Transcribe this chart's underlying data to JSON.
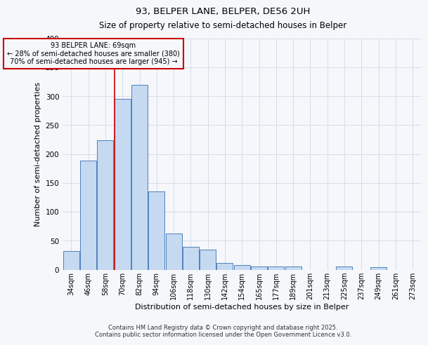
{
  "title": "93, BELPER LANE, BELPER, DE56 2UH",
  "subtitle": "Size of property relative to semi-detached houses in Belper",
  "xlabel": "Distribution of semi-detached houses by size in Belper",
  "ylabel": "Number of semi-detached properties",
  "bar_labels": [
    "34sqm",
    "46sqm",
    "58sqm",
    "70sqm",
    "82sqm",
    "94sqm",
    "106sqm",
    "118sqm",
    "130sqm",
    "142sqm",
    "154sqm",
    "165sqm",
    "177sqm",
    "189sqm",
    "201sqm",
    "213sqm",
    "225sqm",
    "237sqm",
    "249sqm",
    "261sqm",
    "273sqm"
  ],
  "bar_values": [
    32,
    188,
    224,
    295,
    320,
    135,
    62,
    40,
    34,
    11,
    8,
    6,
    6,
    6,
    0,
    0,
    6,
    0,
    4,
    0,
    0
  ],
  "bar_color": "#c5d9f1",
  "bar_edge_color": "#4f81bd",
  "vline_x_idx": 3,
  "vline_color": "#cc0000",
  "annotation_line1": "93 BELPER LANE: 69sqm",
  "annotation_line2": "← 28% of semi-detached houses are smaller (380)",
  "annotation_line3": "70% of semi-detached houses are larger (945) →",
  "annotation_box_color": "#cc0000",
  "ylim": [
    0,
    400
  ],
  "yticks": [
    0,
    50,
    100,
    150,
    200,
    250,
    300,
    350,
    400
  ],
  "footer1": "Contains HM Land Registry data © Crown copyright and database right 2025.",
  "footer2": "Contains public sector information licensed under the Open Government Licence v3.0.",
  "bg_color": "#f5f7fa",
  "grid_color": "#d0d8e8"
}
